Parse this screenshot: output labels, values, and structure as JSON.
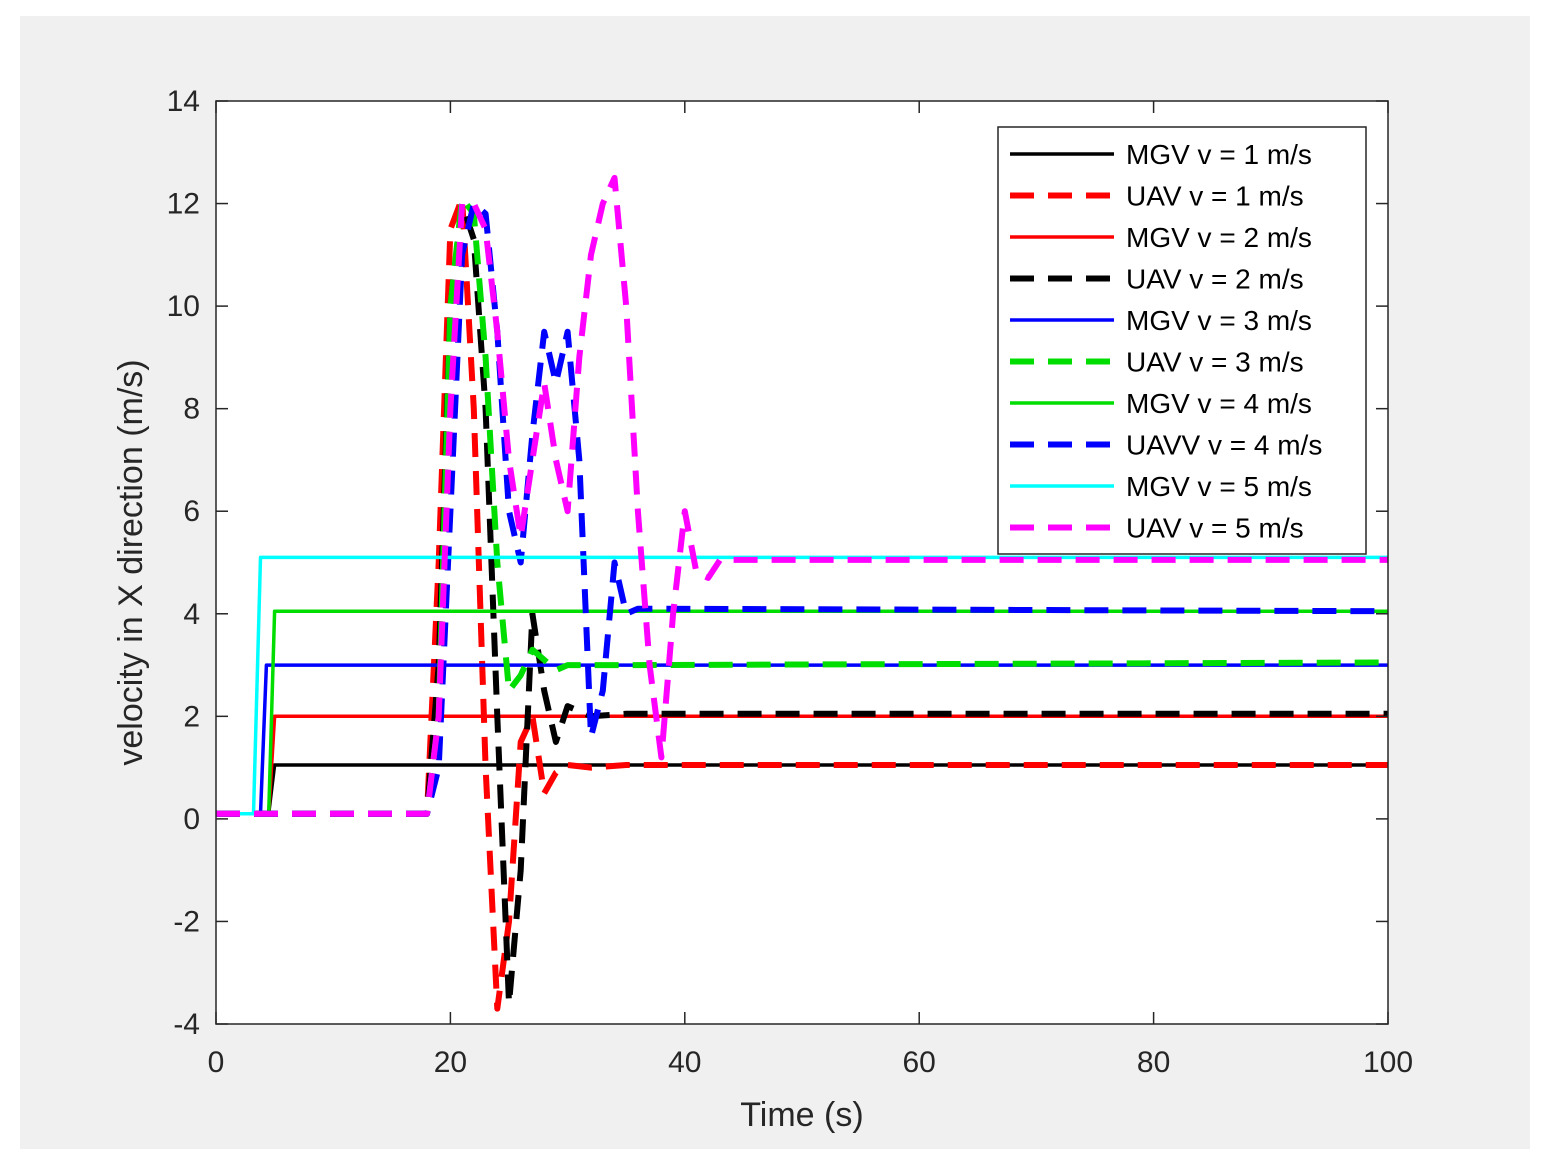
{
  "chart_data": {
    "type": "line",
    "title": "",
    "xlabel": "Time (s)",
    "ylabel": "velocity in X direction (m/s)",
    "xlim": [
      0,
      100
    ],
    "ylim": [
      -4,
      14
    ],
    "xticks": [
      0,
      20,
      40,
      60,
      80,
      100
    ],
    "yticks": [
      -4,
      -2,
      0,
      2,
      4,
      6,
      8,
      10,
      12,
      14
    ],
    "grid": false,
    "legend_position": "top-right",
    "series": [
      {
        "name": "MGV v = 1 m/s",
        "color": "#000000",
        "style": "solid",
        "x": [
          0,
          4.5,
          5,
          100
        ],
        "y": [
          0.1,
          0.1,
          1.05,
          1.05
        ]
      },
      {
        "name": "UAV v = 1 m/s",
        "color": "#ff0000",
        "style": "dashed",
        "x": [
          0,
          18,
          19,
          20,
          21,
          22,
          23,
          24,
          25,
          26,
          27,
          28,
          29,
          30,
          32,
          35,
          100
        ],
        "y": [
          0.1,
          0.1,
          5,
          11.5,
          12.1,
          8,
          1,
          -3.7,
          -2,
          1.5,
          2,
          0.5,
          0.9,
          1.05,
          1.0,
          1.05,
          1.05
        ]
      },
      {
        "name": "MGV v = 2 m/s",
        "color": "#ff0000",
        "style": "solid",
        "x": [
          0,
          4.5,
          5,
          100
        ],
        "y": [
          0.1,
          0.1,
          2.0,
          2.0
        ]
      },
      {
        "name": "UAV v = 2 m/s",
        "color": "#000000",
        "style": "dashed",
        "x": [
          0,
          18,
          19,
          20,
          21,
          22,
          23,
          24,
          25,
          26,
          27,
          28,
          29,
          30,
          32,
          35,
          100
        ],
        "y": [
          0.1,
          0.1,
          3,
          10,
          12,
          11.3,
          8,
          2,
          -3.6,
          -1,
          4,
          2.5,
          1.5,
          2.2,
          2.0,
          2.05,
          2.05
        ]
      },
      {
        "name": "MGV v = 3 m/s",
        "color": "#0000ff",
        "style": "solid",
        "x": [
          0,
          3.8,
          4.3,
          100
        ],
        "y": [
          0.1,
          0.1,
          3.0,
          3.0
        ]
      },
      {
        "name": "UAV v = 3 m/s",
        "color": "#00dd00",
        "style": "dashed",
        "x": [
          0,
          18,
          19,
          20,
          21,
          22,
          23,
          24,
          25,
          26,
          27,
          28,
          29,
          30,
          35,
          100
        ],
        "y": [
          0.1,
          0.1,
          2,
          10,
          12.1,
          11.8,
          9,
          5,
          2.5,
          2.8,
          3.3,
          3.1,
          2.9,
          3.0,
          3.0,
          3.05
        ]
      },
      {
        "name": "MGV v = 4 m/s",
        "color": "#00dd00",
        "style": "solid",
        "x": [
          0,
          4.5,
          5,
          100
        ],
        "y": [
          0.1,
          0.1,
          4.05,
          4.05
        ]
      },
      {
        "name": "UAVV v = 4 m/s",
        "color": "#0000ff",
        "style": "dashed",
        "x": [
          0,
          18,
          19,
          20,
          21,
          22,
          23,
          24,
          25,
          26,
          27,
          28,
          29,
          30,
          31,
          32,
          33,
          34,
          35,
          36,
          100
        ],
        "y": [
          0.1,
          0.1,
          1,
          6,
          11,
          12,
          11.8,
          9.5,
          6,
          5,
          7.5,
          9.5,
          8.5,
          9.5,
          7,
          1.6,
          2.5,
          5,
          4.0,
          4.1,
          4.05
        ]
      },
      {
        "name": "MGV v = 5 m/s",
        "color": "#00ffff",
        "style": "solid",
        "x": [
          0,
          3.2,
          3.8,
          100
        ],
        "y": [
          0.1,
          0.1,
          5.1,
          5.1
        ]
      },
      {
        "name": "UAV v = 5 m/s",
        "color": "#ff00ff",
        "style": "dashed",
        "x": [
          0,
          18,
          19,
          20,
          21,
          22,
          23,
          24,
          25,
          26,
          27,
          28,
          29,
          30,
          31,
          32,
          33,
          34,
          35,
          36,
          37,
          38,
          39,
          40,
          41,
          42,
          43,
          100
        ],
        "y": [
          0.1,
          0.1,
          2,
          8,
          12,
          12,
          11.5,
          9.5,
          7,
          5.5,
          7,
          8.5,
          7,
          6,
          9,
          11,
          12,
          12.5,
          10,
          6,
          3,
          1.2,
          4,
          6,
          4.8,
          4.7,
          5.05,
          5.05
        ]
      }
    ]
  }
}
